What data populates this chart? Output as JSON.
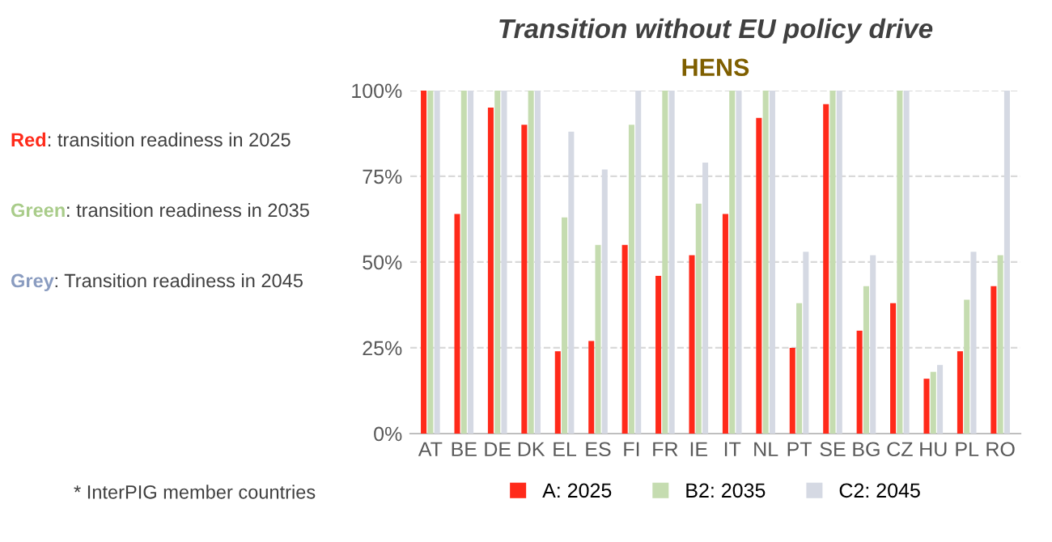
{
  "chart_data": {
    "type": "bar",
    "title": "Transition without EU policy drive",
    "subtitle": "HENS",
    "categories": [
      "AT",
      "BE",
      "DE",
      "DK",
      "EL",
      "ES",
      "FI",
      "FR",
      "IE",
      "IT",
      "NL",
      "PT",
      "SE",
      "BG",
      "CZ",
      "HU",
      "PL",
      "RO"
    ],
    "series": [
      {
        "name": "A: 2025",
        "color": "#ff2a1a",
        "values": [
          100,
          64,
          95,
          90,
          24,
          27,
          55,
          46,
          52,
          64,
          92,
          25,
          96,
          30,
          38,
          16,
          24,
          43
        ]
      },
      {
        "name": "B2: 2035",
        "color": "#c5dcb0",
        "values": [
          100,
          100,
          100,
          100,
          63,
          55,
          90,
          100,
          67,
          100,
          100,
          38,
          100,
          43,
          100,
          18,
          39,
          52
        ]
      },
      {
        "name": "C2: 2045",
        "color": "#d5d9e3",
        "values": [
          100,
          100,
          100,
          100,
          88,
          77,
          100,
          100,
          79,
          100,
          100,
          53,
          100,
          52,
          100,
          20,
          53,
          100
        ]
      }
    ],
    "ylim": [
      0,
      100
    ],
    "yticks": [
      {
        "value": 0,
        "label": "0%"
      },
      {
        "value": 25,
        "label": "25%"
      },
      {
        "value": 50,
        "label": "50%"
      },
      {
        "value": 75,
        "label": "75%"
      },
      {
        "value": 100,
        "label": "100%"
      }
    ],
    "grid": "y",
    "legend": "bottom",
    "annotations": [
      "Red: transition readiness in 2025",
      "Green: transition readiness in 2035",
      "Grey: Transition readiness in 2045",
      "* InterPIG member countries"
    ]
  }
}
